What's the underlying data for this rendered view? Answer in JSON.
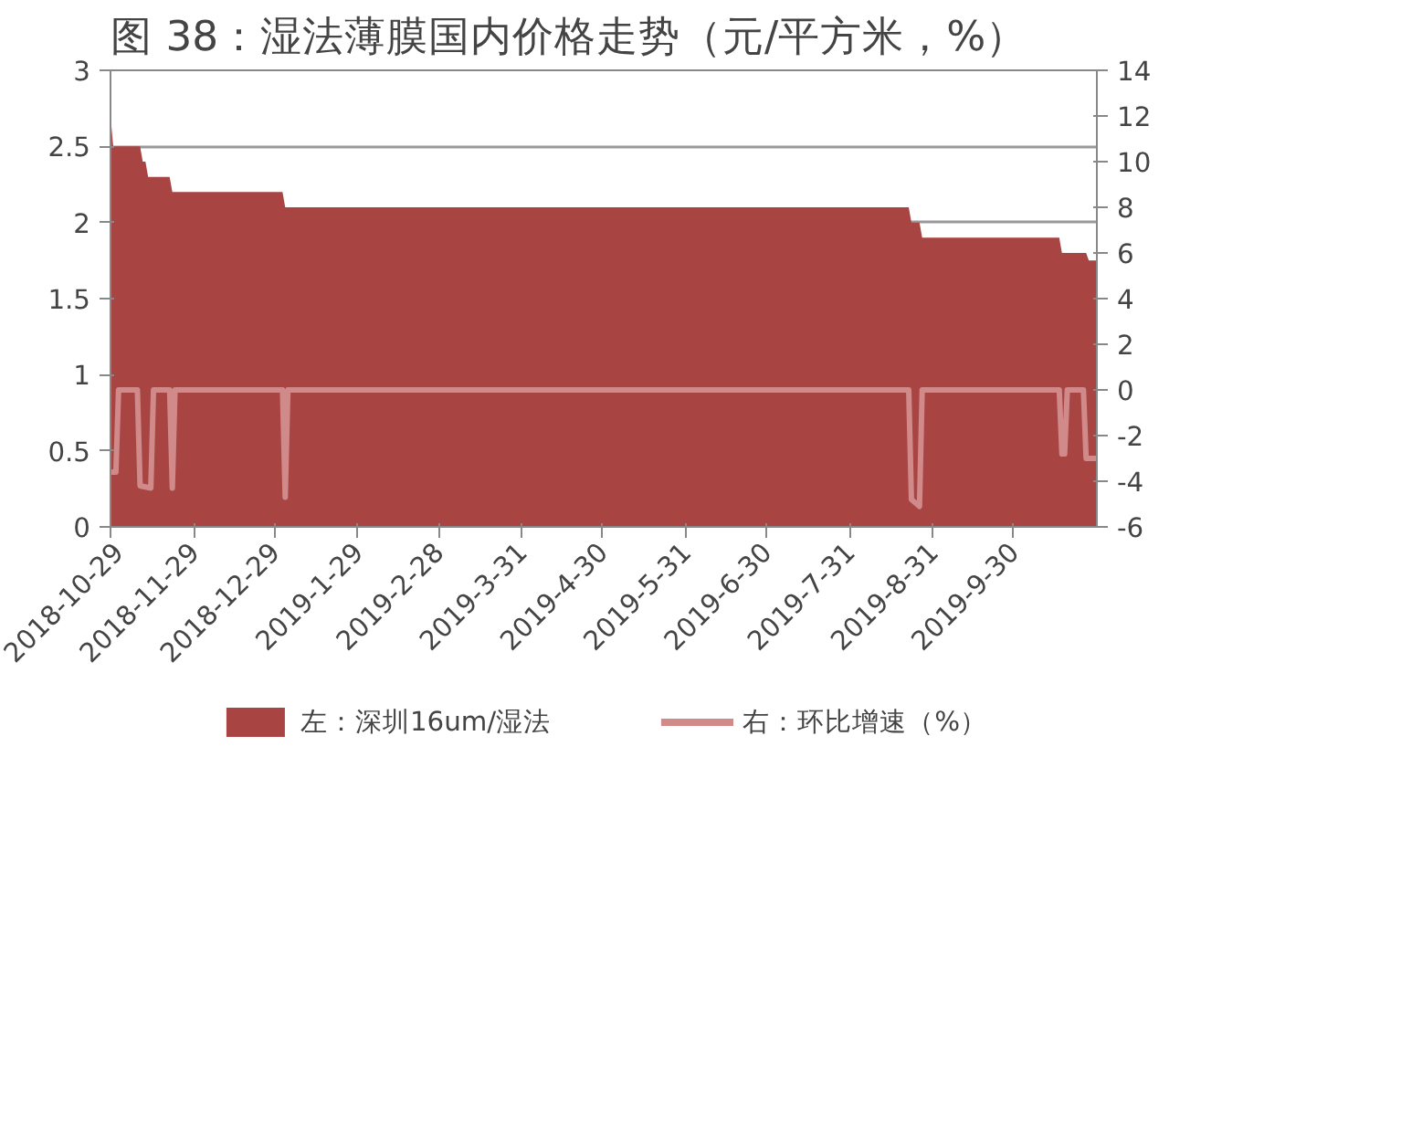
{
  "chart_data": {
    "type": "area",
    "title": "图 38：湿法薄膜国内价格走势（元/平方米，%）",
    "xlim": [
      "2018-10-29",
      "2019-10-31"
    ],
    "xticks": [
      {
        "value": "2018-10-29",
        "label": "2018-10-29"
      },
      {
        "value": "2018-11-29",
        "label": "2018-11-29"
      },
      {
        "value": "2018-12-29",
        "label": "2018-12-29"
      },
      {
        "value": "2019-01-29",
        "label": "2019-1-29"
      },
      {
        "value": "2019-02-28",
        "label": "2019-2-28"
      },
      {
        "value": "2019-03-31",
        "label": "2019-3-31"
      },
      {
        "value": "2019-04-30",
        "label": "2019-4-30"
      },
      {
        "value": "2019-05-31",
        "label": "2019-5-31"
      },
      {
        "value": "2019-06-30",
        "label": "2019-6-30"
      },
      {
        "value": "2019-07-31",
        "label": "2019-7-31"
      },
      {
        "value": "2019-08-31",
        "label": "2019-8-31"
      },
      {
        "value": "2019-09-30",
        "label": "2019-9-30"
      }
    ],
    "ylim": [
      0,
      3
    ],
    "yticks": [
      0,
      0.5,
      1,
      1.5,
      2,
      2.5,
      3
    ],
    "y2lim": [
      -6,
      14
    ],
    "y2ticks": [
      -6,
      -4,
      -2,
      0,
      2,
      4,
      6,
      8,
      10,
      12,
      14
    ],
    "grid": "y",
    "legend": "bottom",
    "series": [
      {
        "name": "左：深圳16um/湿法",
        "color": "#a84442",
        "x": [
          "2018-10-29",
          "2018-10-30",
          "2018-11-09",
          "2018-11-10",
          "2018-11-11",
          "2018-11-12",
          "2018-11-20",
          "2018-11-21",
          "2019-01-01",
          "2019-01-02",
          "2019-08-22",
          "2019-08-23",
          "2019-08-26",
          "2019-08-27",
          "2019-10-17",
          "2019-10-18",
          "2019-10-27",
          "2019-10-28",
          "2019-10-31"
        ],
        "values": [
          2.7,
          2.5,
          2.5,
          2.4,
          2.4,
          2.3,
          2.3,
          2.2,
          2.2,
          2.1,
          2.1,
          2.0,
          2.0,
          1.9,
          1.9,
          1.8,
          1.8,
          1.75,
          1.75
        ]
      },
      {
        "name": "右：环比增速（%）",
        "type": "line",
        "axis": "y2",
        "color": "#d08a8a",
        "x": [
          "2018-10-29",
          "2018-10-31",
          "2018-11-01",
          "2018-11-08",
          "2018-11-09",
          "2018-11-13",
          "2018-11-14",
          "2018-11-20",
          "2018-11-21",
          "2018-11-22",
          "2019-01-01",
          "2019-01-02",
          "2019-01-03",
          "2019-08-22",
          "2019-08-23",
          "2019-08-26",
          "2019-08-27",
          "2019-10-17",
          "2019-10-18",
          "2019-10-19",
          "2019-10-20",
          "2019-10-26",
          "2019-10-27",
          "2019-10-31"
        ],
        "values": [
          -3.6,
          -3.6,
          0,
          0,
          -4.2,
          -4.3,
          0,
          0,
          -4.3,
          0,
          0,
          -4.7,
          0,
          0,
          -4.8,
          -5.1,
          0,
          0,
          -2.8,
          -2.8,
          0,
          0,
          -3.0,
          -3.0
        ]
      }
    ]
  }
}
